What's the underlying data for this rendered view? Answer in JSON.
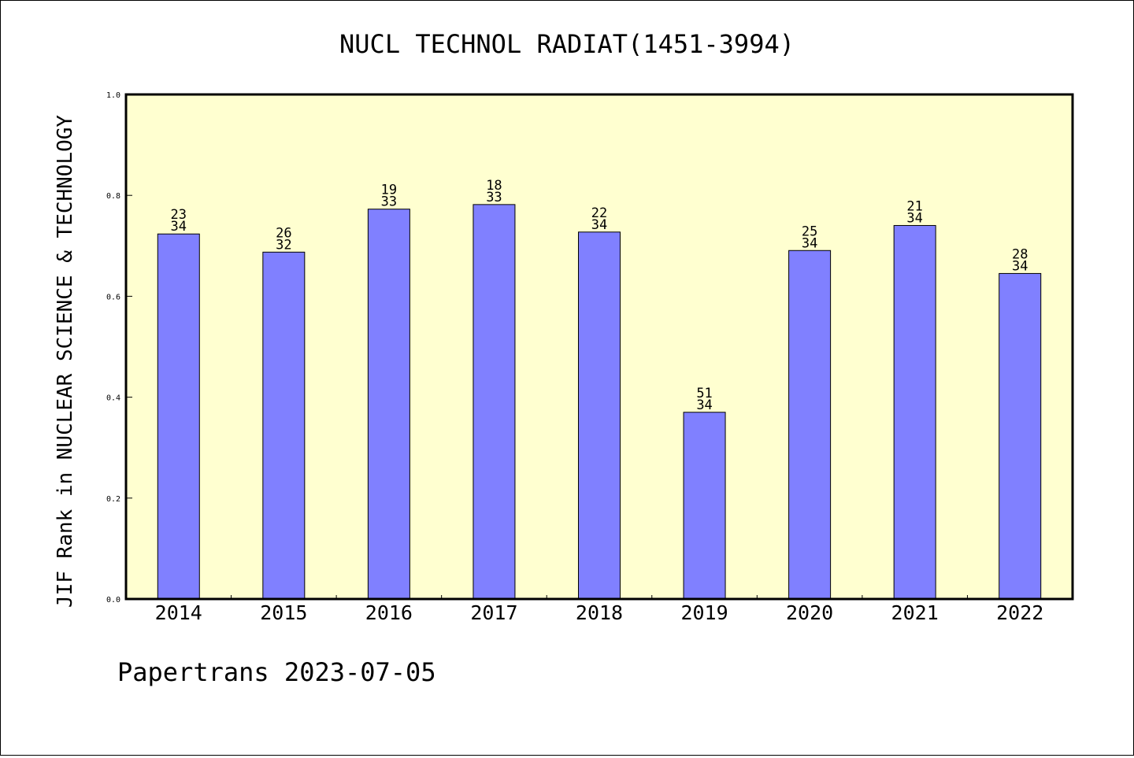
{
  "chart_data": {
    "type": "bar",
    "title": "NUCL TECHNOL RADIAT(1451-3994)",
    "xlabel": "",
    "ylabel": "JIF Rank in NUCLEAR SCIENCE & TECHNOLOGY",
    "categories": [
      "2014",
      "2015",
      "2016",
      "2017",
      "2018",
      "2019",
      "2020",
      "2021",
      "2022"
    ],
    "values": [
      0.7235,
      0.6875,
      0.7727,
      0.7818,
      0.7273,
      0.3701,
      0.6907,
      0.7403,
      0.6452
    ],
    "data_labels": [
      {
        "top": "23",
        "bottom": "34"
      },
      {
        "top": "26",
        "bottom": "32"
      },
      {
        "top": "19",
        "bottom": "33"
      },
      {
        "top": "18",
        "bottom": "33"
      },
      {
        "top": "22",
        "bottom": "34"
      },
      {
        "top": "51",
        "bottom": "34"
      },
      {
        "top": "25",
        "bottom": "34"
      },
      {
        "top": "21",
        "bottom": "34"
      },
      {
        "top": "28",
        "bottom": "34"
      }
    ],
    "ylim": [
      0.0,
      1.0
    ],
    "yticks": [
      "0.0",
      "0.2",
      "0.4",
      "0.6",
      "0.8",
      "1.0"
    ],
    "grid": false,
    "colors": {
      "bar": "#8080ff",
      "plot_background": "#ffffd0"
    }
  },
  "footer": {
    "text": "Papertrans 2023-07-05"
  }
}
